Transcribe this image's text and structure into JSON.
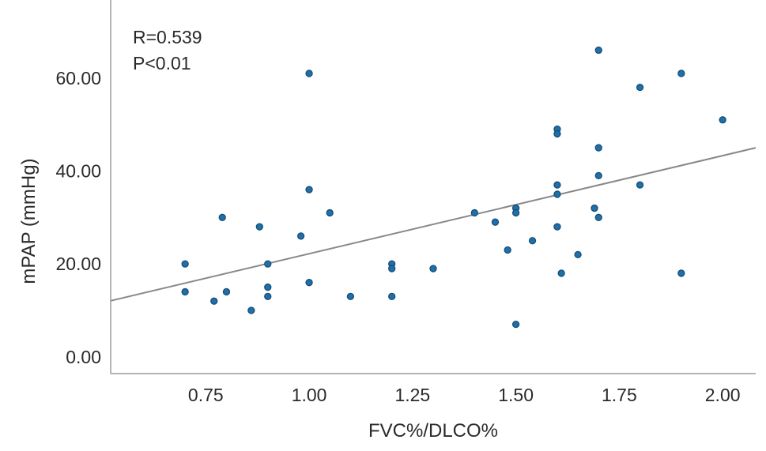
{
  "chart_data": {
    "type": "scatter",
    "title": "",
    "xlabel": "FVC%/DLCO%",
    "ylabel": "mPAP (mmHg)",
    "xlim": [
      0.52,
      2.08
    ],
    "ylim": [
      -3.6,
      76.8
    ],
    "x_ticks": [
      "0.75",
      "1.00",
      "1.25",
      "1.50",
      "1.75",
      "2.00"
    ],
    "x_tick_values": [
      0.75,
      1.0,
      1.25,
      1.5,
      1.75,
      2.0
    ],
    "y_ticks": [
      "0.00",
      "20.00",
      "40.00",
      "60.00"
    ],
    "y_tick_values": [
      0,
      20,
      40,
      60
    ],
    "grid": false,
    "point_color": "#1f6fa8",
    "line_color": "#888888",
    "annotations": [
      "R=0.539",
      "P<0.01"
    ],
    "points": [
      [
        0.7,
        20
      ],
      [
        0.7,
        14
      ],
      [
        0.79,
        30
      ],
      [
        0.77,
        12
      ],
      [
        0.8,
        14
      ],
      [
        0.86,
        10
      ],
      [
        0.88,
        28
      ],
      [
        0.9,
        20
      ],
      [
        0.9,
        15
      ],
      [
        0.9,
        13
      ],
      [
        0.98,
        26
      ],
      [
        1.0,
        61
      ],
      [
        1.0,
        36
      ],
      [
        1.0,
        16
      ],
      [
        1.05,
        31
      ],
      [
        1.1,
        13
      ],
      [
        1.2,
        20
      ],
      [
        1.2,
        19
      ],
      [
        1.2,
        13
      ],
      [
        1.3,
        19
      ],
      [
        1.4,
        31
      ],
      [
        1.45,
        29
      ],
      [
        1.48,
        23
      ],
      [
        1.5,
        32
      ],
      [
        1.5,
        31
      ],
      [
        1.5,
        7
      ],
      [
        1.54,
        25
      ],
      [
        1.6,
        49
      ],
      [
        1.6,
        48
      ],
      [
        1.6,
        37
      ],
      [
        1.6,
        35
      ],
      [
        1.6,
        28
      ],
      [
        1.61,
        18
      ],
      [
        1.65,
        22
      ],
      [
        1.69,
        32
      ],
      [
        1.7,
        66
      ],
      [
        1.7,
        45
      ],
      [
        1.7,
        39
      ],
      [
        1.7,
        30
      ],
      [
        1.8,
        58
      ],
      [
        1.8,
        37
      ],
      [
        1.9,
        61
      ],
      [
        1.9,
        18
      ],
      [
        2.0,
        51
      ]
    ],
    "fit_line": {
      "intercept": 1.1,
      "slope": 21.1
    }
  }
}
